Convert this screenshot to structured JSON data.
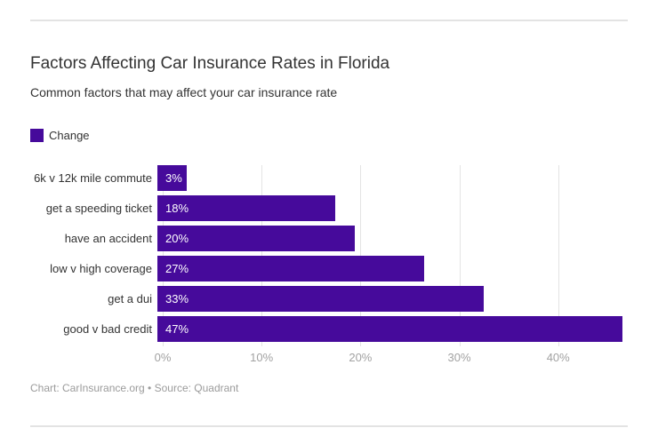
{
  "page": {
    "title": "Factors Affecting Car Insurance Rates in Florida",
    "subtitle": "Common factors that may affect your car insurance rate",
    "footer": "Chart: CarInsurance.org • Source: Quadrant"
  },
  "legend": {
    "label": "Change"
  },
  "colors": {
    "bar": "#460a9b",
    "gridline": "#e4e4e4",
    "divider": "#e3e3e3",
    "axis_text": "#a2a2a2",
    "text": "#333333",
    "value_text": "#ffffff"
  },
  "chart_data": {
    "type": "bar",
    "orientation": "horizontal",
    "title": "Factors Affecting Car Insurance Rates in Florida",
    "subtitle": "Common factors that may affect your car insurance rate",
    "series_name": "Change",
    "categories": [
      "6k v 12k mile commute",
      "get a speeding ticket",
      "have an accident",
      "low v high coverage",
      "get a dui",
      "good v bad credit"
    ],
    "values": [
      3,
      18,
      20,
      27,
      33,
      47
    ],
    "value_labels": [
      "3%",
      "18%",
      "20%",
      "27%",
      "33%",
      "47%"
    ],
    "x_tick_values": [
      0,
      10,
      20,
      30,
      40
    ],
    "x_tick_labels": [
      "0%",
      "10%",
      "20%",
      "30%",
      "40%"
    ],
    "xlim": [
      0,
      47.4
    ],
    "grid": true,
    "legend_position": "top-left"
  }
}
